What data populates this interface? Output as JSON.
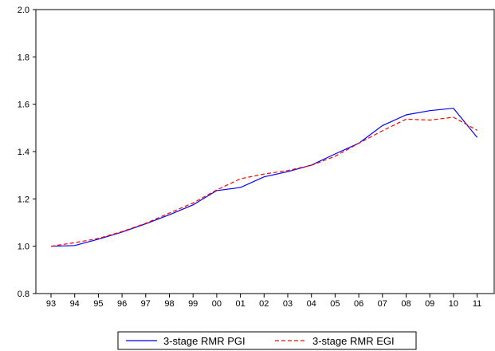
{
  "chart_data": {
    "type": "line",
    "title": "",
    "xlabel": "",
    "ylabel": "",
    "categories": [
      "93",
      "94",
      "95",
      "96",
      "97",
      "98",
      "99",
      "00",
      "01",
      "02",
      "03",
      "04",
      "05",
      "06",
      "07",
      "08",
      "09",
      "10",
      "11"
    ],
    "ylim": [
      0.8,
      2.0
    ],
    "yticks": [
      "0.8",
      "1.0",
      "1.2",
      "1.4",
      "1.6",
      "1.8",
      "2.0"
    ],
    "grid": false,
    "legend_position": "bottom",
    "series": [
      {
        "name": "3-stage RMR PGI",
        "color": "#0000ff",
        "style": "solid",
        "values": [
          1.0,
          1.003,
          1.03,
          1.06,
          1.095,
          1.133,
          1.175,
          1.235,
          1.248,
          1.293,
          1.315,
          1.343,
          1.39,
          1.435,
          1.51,
          1.555,
          1.573,
          1.583,
          1.46
        ]
      },
      {
        "name": "3-stage RMR EGI",
        "color": "#ff0000",
        "style": "dashed",
        "values": [
          1.0,
          1.015,
          1.033,
          1.062,
          1.097,
          1.14,
          1.183,
          1.238,
          1.285,
          1.305,
          1.32,
          1.342,
          1.38,
          1.435,
          1.488,
          1.537,
          1.533,
          1.545,
          1.49
        ]
      }
    ]
  }
}
